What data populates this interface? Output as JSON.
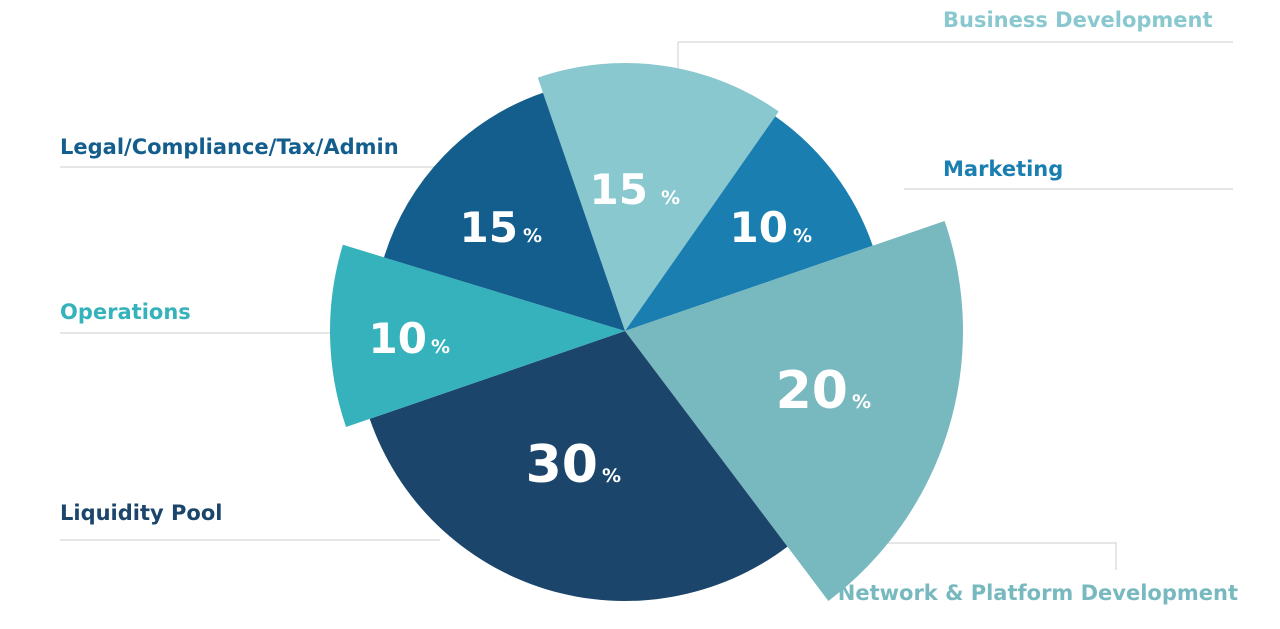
{
  "chart_data": {
    "type": "pie",
    "title": "",
    "percent_symbol": "%",
    "categories": [
      "Business Development",
      "Marketing",
      "Network & Platform Development",
      "Liquidity Pool",
      "Operations",
      "Legal/Compliance/Tax/Admin"
    ],
    "values": [
      15,
      10,
      20,
      30,
      10,
      15
    ],
    "value_labels": [
      "15",
      "10",
      "20",
      "30",
      "10",
      "15"
    ],
    "colors": [
      "#89c8cf",
      "#1a7fb0",
      "#78b9bf",
      "#1b456b",
      "#35b2bb",
      "#135e8d"
    ],
    "label_colors": [
      "#89c8cf",
      "#1a7fb0",
      "#78b9bf",
      "#1b456b",
      "#35b2bb",
      "#135e8d"
    ],
    "legend": "callout labels with leader lines",
    "grid": false
  }
}
